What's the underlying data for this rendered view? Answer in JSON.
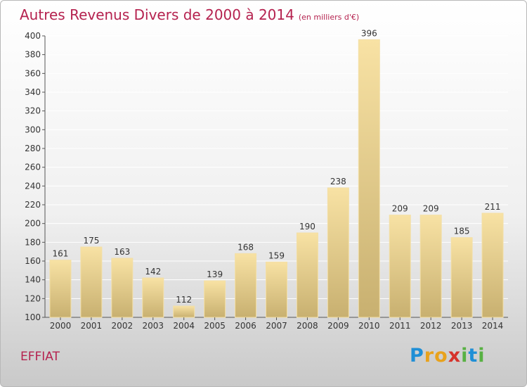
{
  "header": {
    "title": "Autres Revenus Divers de 2000 à 2014",
    "unit": "(en milliers d'€)"
  },
  "footer": {
    "place": "EFFIAT",
    "logo": [
      {
        "char": "P",
        "color": "#1f8fd6"
      },
      {
        "char": "r",
        "color": "#e8a21c"
      },
      {
        "char": "o",
        "color": "#e8a21c"
      },
      {
        "char": "x",
        "color": "#d6322b"
      },
      {
        "char": "i",
        "color": "#58b143"
      },
      {
        "char": "t",
        "color": "#1f8fd6"
      },
      {
        "char": "i",
        "color": "#58b143"
      }
    ]
  },
  "colors": {
    "accent": "#b5224f",
    "bar_top": "#f8e2a4",
    "bar_bottom": "#c8b070",
    "axis": "#555555",
    "grid": "#ffffff"
  },
  "chart_data": {
    "type": "bar",
    "title": "Autres Revenus Divers de 2000 à 2014",
    "subtitle": "(en milliers d'€)",
    "categories": [
      "2000",
      "2001",
      "2002",
      "2003",
      "2004",
      "2005",
      "2006",
      "2007",
      "2008",
      "2009",
      "2010",
      "2011",
      "2012",
      "2013",
      "2014"
    ],
    "values": [
      161,
      175,
      163,
      142,
      112,
      139,
      168,
      159,
      190,
      238,
      396,
      209,
      209,
      185,
      211
    ],
    "data_labels": [
      "161",
      "175",
      "163",
      "142",
      "112",
      "139",
      "168",
      "159",
      "190",
      "238",
      "396",
      "209",
      "209",
      "185",
      "211"
    ],
    "ylim": [
      100,
      400
    ],
    "yticks": [
      100,
      120,
      140,
      160,
      180,
      200,
      220,
      240,
      260,
      280,
      300,
      320,
      340,
      360,
      380,
      400
    ],
    "xlabel": "",
    "ylabel": "",
    "grid": true,
    "legend": "none"
  }
}
